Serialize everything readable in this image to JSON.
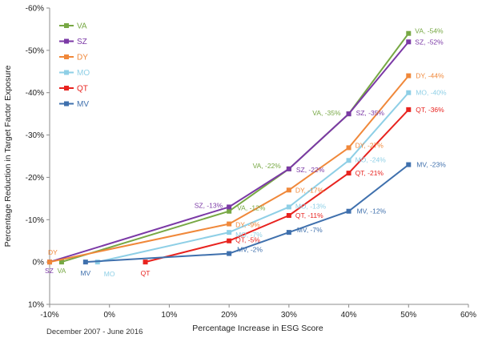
{
  "chart_data": {
    "type": "line",
    "xlabel": "Percentage Increase in ESG Score",
    "ylabel": "Percentage Reduction in Target Factor Exposure",
    "footnote": "December 2007 - June 2016",
    "xlim": [
      -10,
      60
    ],
    "ylim": [
      10,
      -60
    ],
    "x_ticks": [
      "-10%",
      "0%",
      "10%",
      "20%",
      "30%",
      "40%",
      "50%",
      "60%"
    ],
    "y_ticks": [
      "-60%",
      "-50%",
      "-40%",
      "-30%",
      "-20%",
      "-10%",
      "0%",
      "10%"
    ],
    "legend_position": "top-left",
    "series": [
      {
        "name": "VA",
        "color": "#77a844",
        "points": [
          {
            "x": -8,
            "y": 0
          },
          {
            "x": 20,
            "y": -12
          },
          {
            "x": 30,
            "y": -22
          },
          {
            "x": 40,
            "y": -35
          },
          {
            "x": 50,
            "y": -54
          }
        ],
        "labels": [
          "VA",
          "VA, -12%",
          "VA, -22%",
          "VA, -35%",
          "VA, -54%"
        ]
      },
      {
        "name": "SZ",
        "color": "#7b39a6",
        "points": [
          {
            "x": -10,
            "y": 0
          },
          {
            "x": 20,
            "y": -13
          },
          {
            "x": 30,
            "y": -22
          },
          {
            "x": 40,
            "y": -35
          },
          {
            "x": 50,
            "y": -52
          }
        ],
        "labels": [
          "SZ",
          "SZ, -13%",
          "SZ, -22%",
          "SZ, -35%",
          "SZ, -52%"
        ]
      },
      {
        "name": "DY",
        "color": "#f0883a",
        "points": [
          {
            "x": -10,
            "y": 0
          },
          {
            "x": 20,
            "y": -9
          },
          {
            "x": 30,
            "y": -17
          },
          {
            "x": 40,
            "y": -27
          },
          {
            "x": 50,
            "y": -44
          }
        ],
        "labels": [
          "DY",
          "DY, -9%",
          "DY, -17%",
          "DY, -27%",
          "DY, -44%"
        ]
      },
      {
        "name": "MO",
        "color": "#8ecfe6",
        "points": [
          {
            "x": -2,
            "y": 0
          },
          {
            "x": 20,
            "y": -7
          },
          {
            "x": 30,
            "y": -13
          },
          {
            "x": 40,
            "y": -24
          },
          {
            "x": 50,
            "y": -40
          }
        ],
        "labels": [
          "MO",
          "MO, -7%",
          "MO, -13%",
          "MO, -24%",
          "MO, -40%"
        ]
      },
      {
        "name": "QT",
        "color": "#e8231f",
        "points": [
          {
            "x": 6,
            "y": 0
          },
          {
            "x": 20,
            "y": -5
          },
          {
            "x": 30,
            "y": -11
          },
          {
            "x": 40,
            "y": -21
          },
          {
            "x": 50,
            "y": -36
          }
        ],
        "labels": [
          "QT",
          "QT, -5%",
          "QT, -11%",
          "QT, -21%",
          "QT, -36%"
        ]
      },
      {
        "name": "MV",
        "color": "#3f70ad",
        "points": [
          {
            "x": -4,
            "y": 0
          },
          {
            "x": 20,
            "y": -2
          },
          {
            "x": 30,
            "y": -7
          },
          {
            "x": 40,
            "y": -12
          },
          {
            "x": 50,
            "y": -23
          }
        ],
        "labels": [
          "MV",
          "MV, -2%",
          "MV, -7%",
          "MV, -12%",
          "MV, -23%"
        ]
      }
    ]
  }
}
